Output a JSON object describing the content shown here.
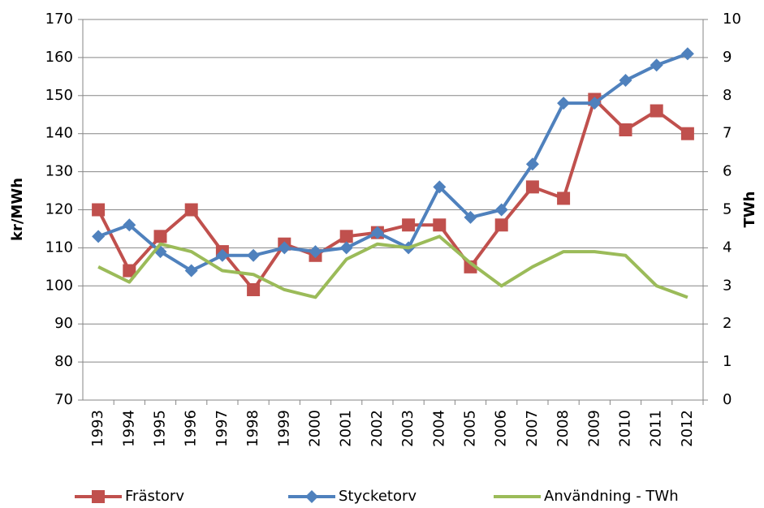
{
  "chart_data": {
    "type": "line",
    "ylabel": "kr/MWh",
    "y2label": "TWh",
    "categories": [
      "1993",
      "1994",
      "1995",
      "1996",
      "1997",
      "1998",
      "1999",
      "2000",
      "2001",
      "2002",
      "2003",
      "2004",
      "2005",
      "2006",
      "2007",
      "2008",
      "2009",
      "2010",
      "2011",
      "2012"
    ],
    "ylim": [
      70,
      170
    ],
    "yticks": [
      70,
      80,
      90,
      100,
      110,
      120,
      130,
      140,
      150,
      160,
      170
    ],
    "y2lim": [
      0,
      10
    ],
    "y2ticks": [
      0,
      1,
      2,
      3,
      4,
      5,
      6,
      7,
      8,
      9,
      10
    ],
    "grid": true,
    "legend": "bottom",
    "series": [
      {
        "name": "Frästorv",
        "color": "#c0504d",
        "marker": "square",
        "values": [
          120,
          104,
          113,
          120,
          109,
          99,
          111,
          108,
          113,
          114,
          116,
          116,
          105,
          116,
          126,
          123,
          149,
          141,
          146,
          140
        ]
      },
      {
        "name": "Stycketorv",
        "color": "#4f81bd",
        "marker": "diamond",
        "values": [
          113,
          116,
          109,
          104,
          108,
          108,
          110,
          109,
          110,
          114,
          110,
          126,
          118,
          120,
          132,
          148,
          148,
          154,
          158,
          161
        ]
      },
      {
        "name": "Användning - TWh",
        "color": "#9bbb59",
        "marker": "none",
        "axis": "y2",
        "values": [
          3.5,
          3.1,
          4.1,
          3.9,
          3.4,
          3.3,
          2.9,
          2.7,
          3.7,
          4.1,
          4.0,
          4.3,
          3.6,
          3.0,
          3.5,
          3.9,
          3.9,
          3.8,
          3.0,
          2.7
        ]
      }
    ]
  }
}
